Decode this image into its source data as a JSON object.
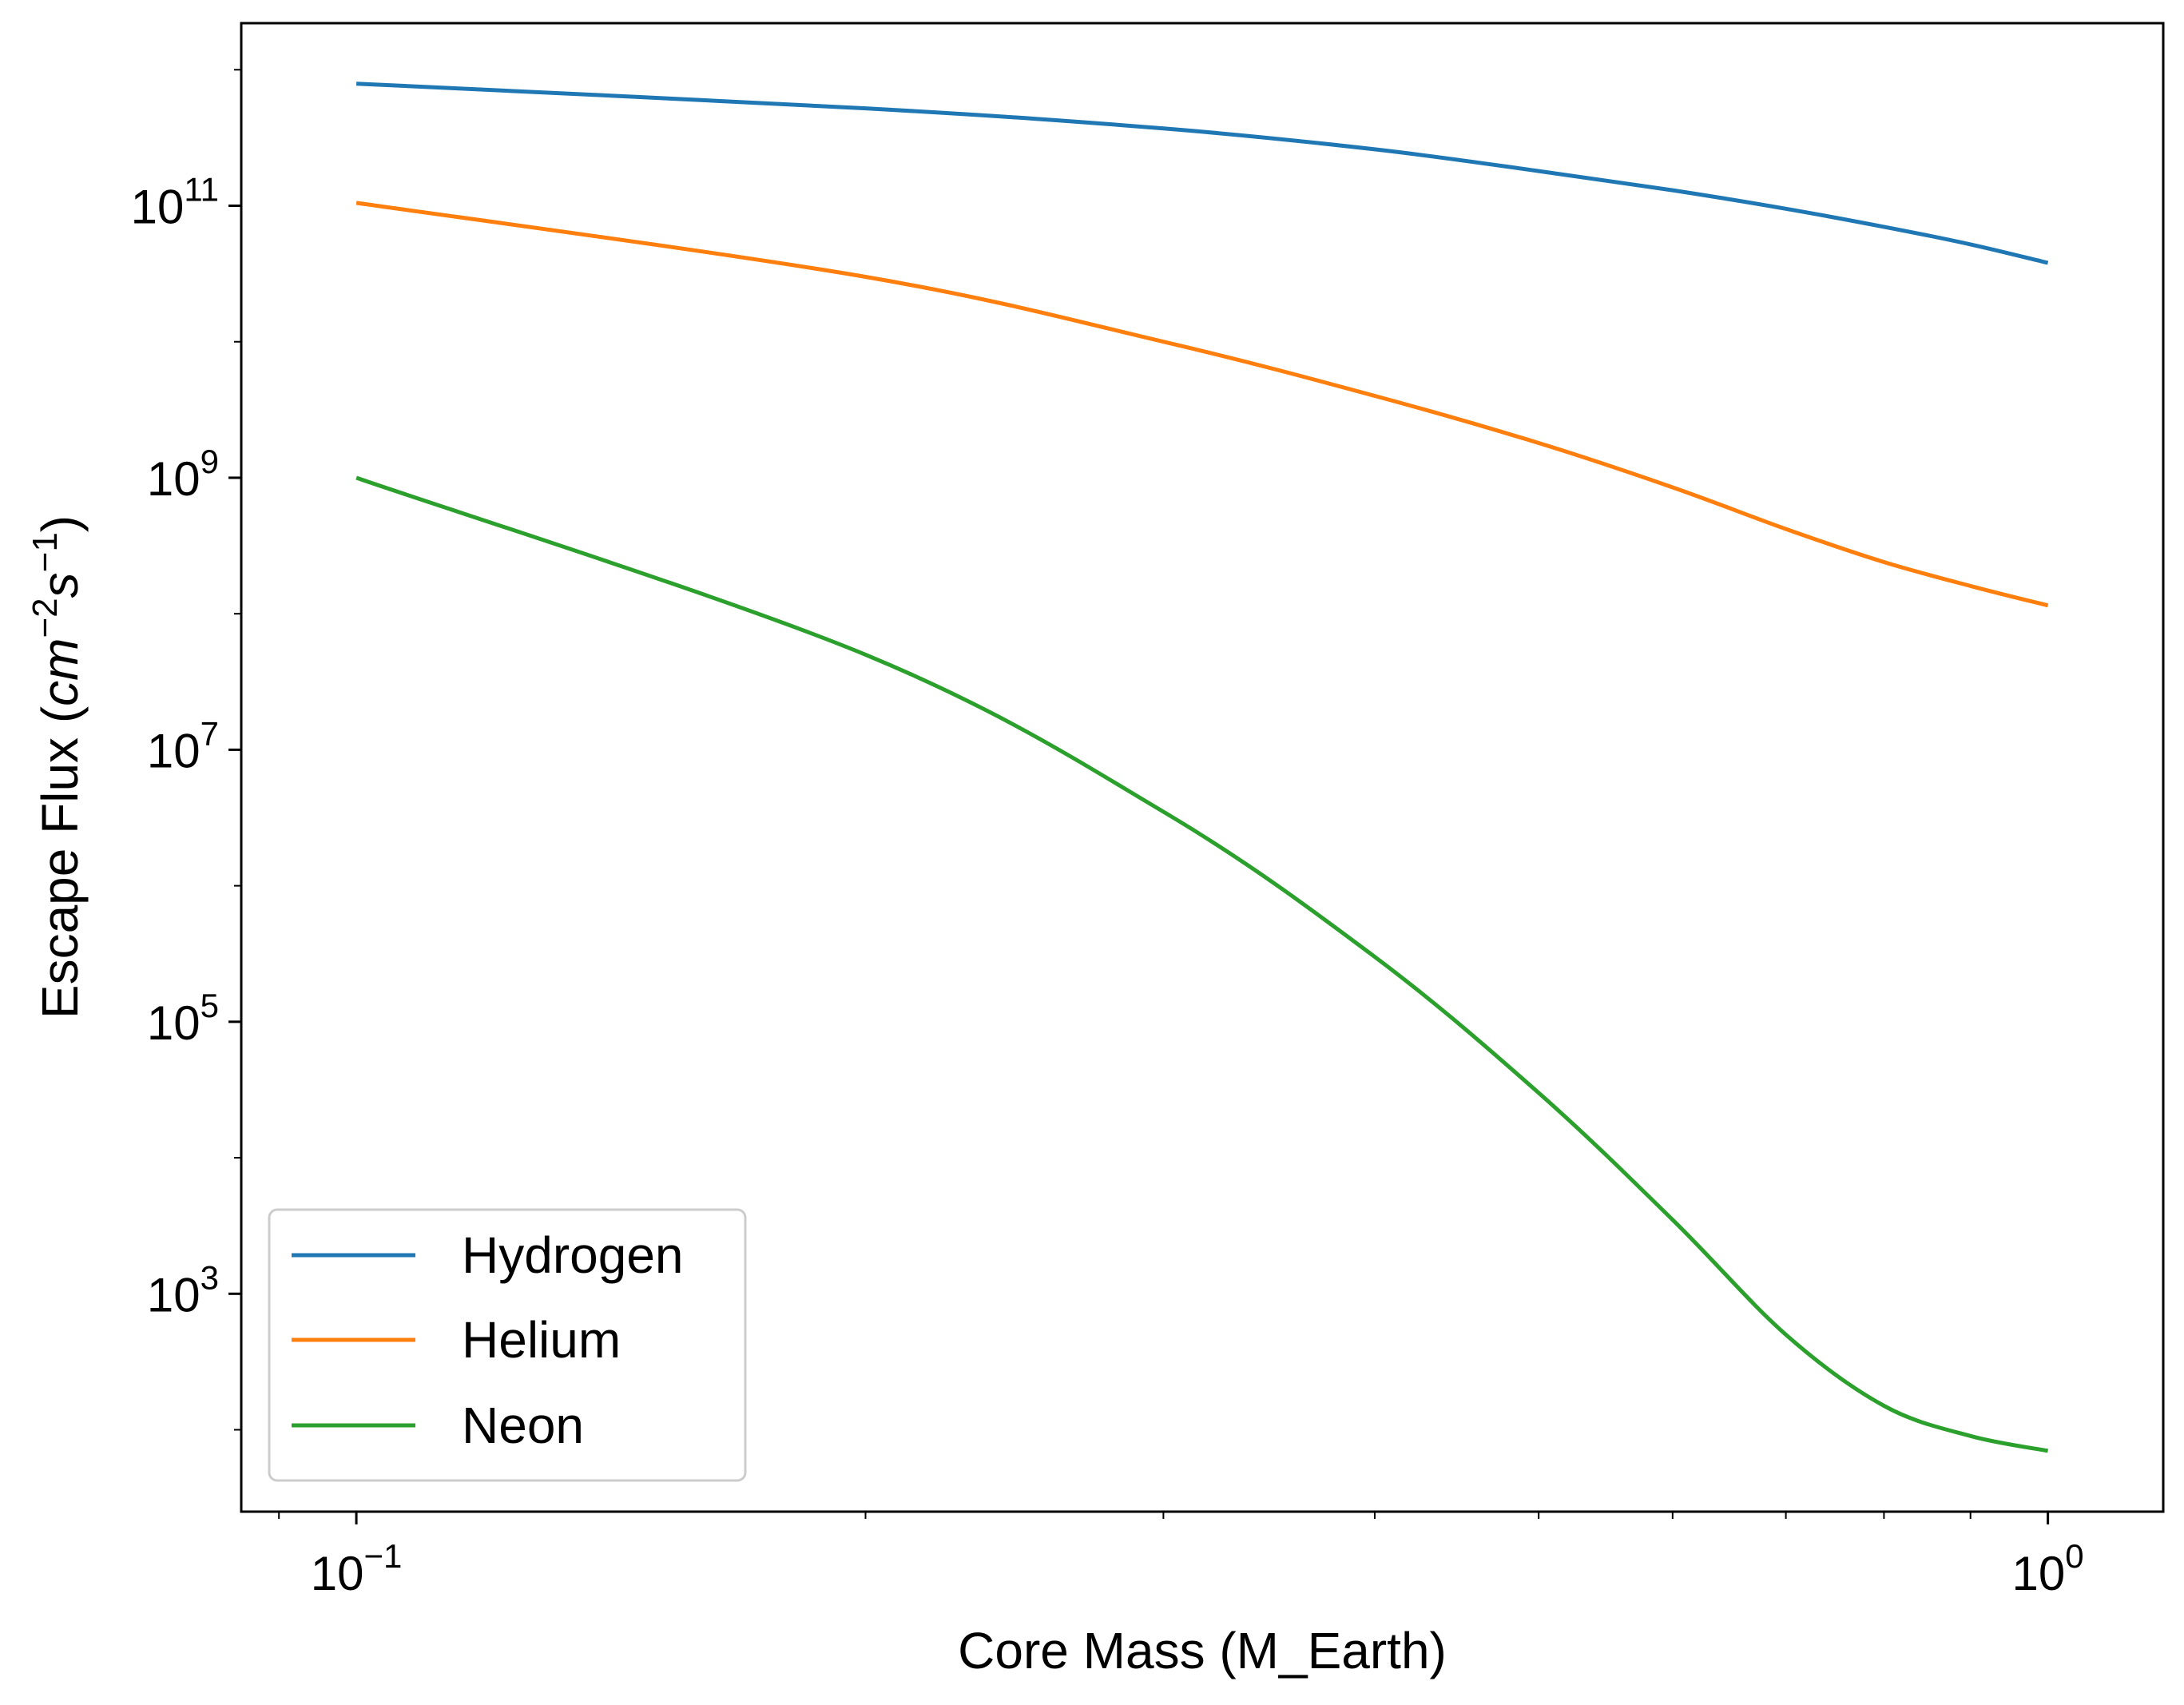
{
  "chart_data": {
    "type": "line",
    "title": "",
    "xlabel": "Core Mass (M_Earth)",
    "ylabel_parts": {
      "text": "Escape Flux (",
      "unit_cm": "cm",
      "exp_cm": "−2",
      "unit_s": "s",
      "exp_s": "−1",
      "close": ")"
    },
    "xscale": "log",
    "yscale": "log",
    "xlim": [
      0.0855,
      1.17
    ],
    "ylim": [
      25,
      2200000000000.0
    ],
    "x_ticks": [
      {
        "value": 0.1,
        "base": "10",
        "exp": "−1"
      },
      {
        "value": 1.0,
        "base": "10",
        "exp": "0"
      }
    ],
    "y_ticks": [
      {
        "value": 1000,
        "base": "10",
        "exp": "3"
      },
      {
        "value": 100000,
        "base": "10",
        "exp": "5"
      },
      {
        "value": 10000000,
        "base": "10",
        "exp": "7"
      },
      {
        "value": 1000000000,
        "base": "10",
        "exp": "9"
      },
      {
        "value": 100000000000,
        "base": "10",
        "exp": "11"
      }
    ],
    "x": [
      0.1,
      0.2,
      0.3,
      0.4,
      0.5,
      0.6,
      0.7,
      0.8,
      0.9,
      1.0
    ],
    "series": [
      {
        "name": "Hydrogen",
        "color": "#1f77b4",
        "values": [
          790000000000.0,
          520000000000.0,
          370000000000.0,
          260000000000.0,
          180000000000.0,
          130000000000.0,
          95000000000.0,
          70000000000.0,
          52000000000.0,
          38000000000.0
        ]
      },
      {
        "name": "Helium",
        "color": "#ff7f0e",
        "values": [
          105000000000.0,
          30000000000.0,
          10000000000.0,
          4000000000.0,
          1800000000.0,
          850000000.0,
          420000000.0,
          240000000.0,
          160000000.0,
          115000000.0
        ]
      },
      {
        "name": "Neon",
        "color": "#2ca02c",
        "values": [
          1000000000.0,
          50000000.0,
          3500000.0,
          300000.0,
          30000.0,
          3500.0,
          500,
          150,
          90,
          70
        ]
      }
    ],
    "legend_position": "lower-left",
    "grid": false
  }
}
